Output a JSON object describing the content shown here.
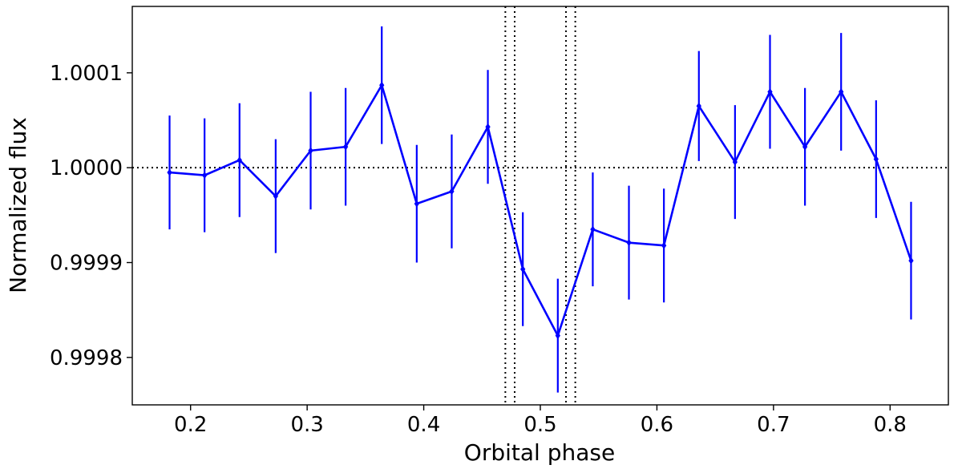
{
  "chart_data": {
    "type": "line",
    "xlabel": "Orbital phase",
    "ylabel": "Normalized flux",
    "xlim": [
      0.15,
      0.85
    ],
    "ylim": [
      0.99975,
      1.00017
    ],
    "x_ticks": [
      0.2,
      0.3,
      0.4,
      0.5,
      0.6,
      0.7,
      0.8
    ],
    "x_tick_labels": [
      "0.2",
      "0.3",
      "0.4",
      "0.5",
      "0.6",
      "0.7",
      "0.8"
    ],
    "y_ticks": [
      0.9998,
      0.9999,
      1.0,
      1.0001
    ],
    "y_tick_labels": [
      "0.9998",
      "0.9999",
      "1.0000",
      "1.0001"
    ],
    "grid": false,
    "color": "#0000ff",
    "reference_lines": {
      "horizontal": [
        1.0
      ],
      "vertical": [
        0.47,
        0.478,
        0.522,
        0.53
      ],
      "style": "dotted",
      "color": "#000000"
    },
    "series": [
      {
        "x": [
          0.182,
          0.212,
          0.242,
          0.273,
          0.303,
          0.333,
          0.364,
          0.394,
          0.424,
          0.455,
          0.485,
          0.515,
          0.545,
          0.576,
          0.606,
          0.636,
          0.667,
          0.697,
          0.727,
          0.758,
          0.788,
          0.818
        ],
        "y": [
          0.999995,
          0.999992,
          1.000008,
          0.99997,
          1.000018,
          1.000022,
          1.000087,
          0.999962,
          0.999975,
          1.000043,
          0.999893,
          0.999823,
          0.999935,
          0.999921,
          0.999918,
          1.000065,
          1.000006,
          1.00008,
          1.000022,
          1.00008,
          1.000009,
          0.999902
        ],
        "yerr": [
          6e-05,
          6e-05,
          6e-05,
          6e-05,
          6.2e-05,
          6.2e-05,
          6.2e-05,
          6.2e-05,
          6e-05,
          6e-05,
          6e-05,
          6e-05,
          6e-05,
          6e-05,
          6e-05,
          5.8e-05,
          6e-05,
          6e-05,
          6.2e-05,
          6.2e-05,
          6.2e-05,
          6.2e-05
        ]
      }
    ]
  }
}
